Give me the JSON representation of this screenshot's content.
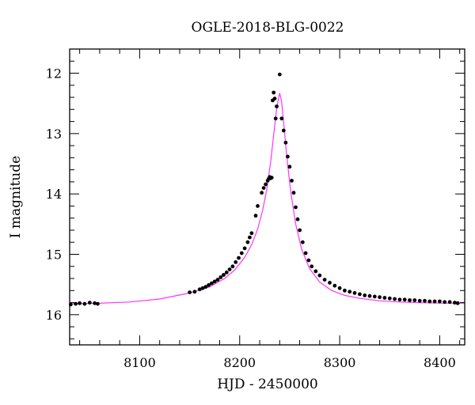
{
  "chart_data": {
    "type": "scatter",
    "title": "OGLE-2018-BLG-0022",
    "xlabel": "HJD - 2450000",
    "ylabel": "I magnitude",
    "xlim": [
      8030,
      8425
    ],
    "ylim": [
      16.5,
      11.6
    ],
    "y_inverted": true,
    "xticks": [
      8100,
      8200,
      8300,
      8400
    ],
    "yticks": [
      12,
      13,
      14,
      15,
      16
    ],
    "grid": false,
    "series": [
      {
        "kind": "points",
        "color": "#000000",
        "x": [
          8031,
          8036,
          8040,
          8045,
          8050,
          8055,
          8058,
          8150,
          8155,
          8160,
          8163,
          8166,
          8169,
          8172,
          8175,
          8178,
          8181,
          8184,
          8187,
          8190,
          8193,
          8196,
          8199,
          8202,
          8205,
          8208,
          8210,
          8212,
          8216,
          8218,
          8222,
          8224,
          8226,
          8228,
          8229,
          8230,
          8231,
          8232,
          8233,
          8234,
          8235,
          8236,
          8237,
          8240,
          8242,
          8244,
          8246,
          8248,
          8250,
          8252,
          8254,
          8256,
          8258,
          8260,
          8263,
          8266,
          8269,
          8272,
          8276,
          8280,
          8285,
          8290,
          8295,
          8300,
          8305,
          8310,
          8315,
          8320,
          8325,
          8330,
          8335,
          8340,
          8345,
          8350,
          8355,
          8360,
          8365,
          8370,
          8375,
          8380,
          8385,
          8390,
          8395,
          8400,
          8405,
          8410,
          8415,
          8418
        ],
        "y": [
          15.83,
          15.82,
          15.81,
          15.82,
          15.8,
          15.81,
          15.82,
          15.63,
          15.62,
          15.58,
          15.56,
          15.54,
          15.51,
          15.48,
          15.45,
          15.42,
          15.38,
          15.34,
          15.3,
          15.25,
          15.2,
          15.13,
          15.06,
          14.98,
          14.9,
          14.8,
          14.72,
          14.65,
          14.36,
          14.2,
          13.98,
          13.9,
          13.84,
          13.78,
          13.75,
          13.72,
          13.74,
          13.73,
          12.45,
          12.32,
          12.42,
          12.75,
          12.55,
          12.02,
          12.75,
          12.95,
          13.15,
          13.38,
          13.55,
          13.78,
          13.98,
          14.22,
          14.42,
          14.6,
          14.8,
          14.98,
          15.1,
          15.2,
          15.28,
          15.35,
          15.42,
          15.47,
          15.52,
          15.56,
          15.6,
          15.62,
          15.64,
          15.66,
          15.68,
          15.69,
          15.7,
          15.71,
          15.72,
          15.73,
          15.74,
          15.75,
          15.75,
          15.76,
          15.76,
          15.77,
          15.77,
          15.78,
          15.78,
          15.78,
          15.79,
          15.79,
          15.8,
          15.81
        ]
      },
      {
        "kind": "line",
        "color": "#ff33ff",
        "x": [
          8030,
          8060,
          8090,
          8120,
          8150,
          8170,
          8185,
          8195,
          8205,
          8212,
          8218,
          8223,
          8227,
          8231,
          8234,
          8237,
          8239,
          8240,
          8242,
          8244,
          8247,
          8251,
          8256,
          8262,
          8270,
          8280,
          8292,
          8305,
          8320,
          8340,
          8360,
          8380,
          8400,
          8425
        ],
        "y": [
          15.82,
          15.81,
          15.79,
          15.74,
          15.64,
          15.54,
          15.4,
          15.26,
          15.05,
          14.84,
          14.58,
          14.27,
          13.93,
          13.47,
          13.02,
          12.58,
          12.4,
          12.33,
          12.48,
          12.82,
          13.36,
          13.96,
          14.5,
          14.92,
          15.24,
          15.46,
          15.6,
          15.68,
          15.73,
          15.77,
          15.79,
          15.8,
          15.81,
          15.81
        ]
      }
    ]
  }
}
